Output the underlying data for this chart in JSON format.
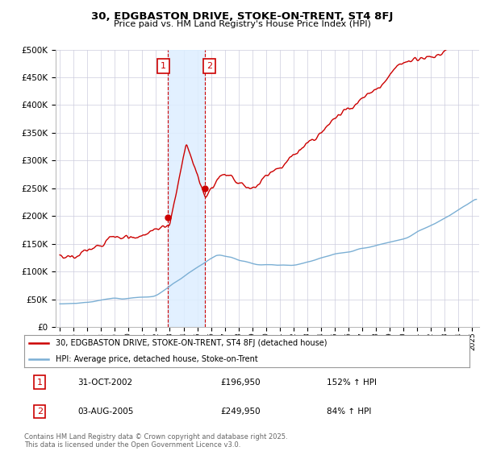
{
  "title": "30, EDGBASTON DRIVE, STOKE-ON-TRENT, ST4 8FJ",
  "subtitle": "Price paid vs. HM Land Registry's House Price Index (HPI)",
  "legend_line1": "30, EDGBASTON DRIVE, STOKE-ON-TRENT, ST4 8FJ (detached house)",
  "legend_line2": "HPI: Average price, detached house, Stoke-on-Trent",
  "annotation1_date": "31-OCT-2002",
  "annotation1_price": "£196,950",
  "annotation1_hpi": "152% ↑ HPI",
  "annotation2_date": "03-AUG-2005",
  "annotation2_price": "£249,950",
  "annotation2_hpi": "84% ↑ HPI",
  "footer": "Contains HM Land Registry data © Crown copyright and database right 2025.\nThis data is licensed under the Open Government Licence v3.0.",
  "purchase1_x": 2002.83,
  "purchase1_y": 196950,
  "purchase2_x": 2005.58,
  "purchase2_y": 249950,
  "vline1_x": 2002.83,
  "vline2_x": 2005.58,
  "shade_xmin": 2002.83,
  "shade_xmax": 2005.58,
  "line1_color": "#cc0000",
  "line2_color": "#7bafd4",
  "shade_color": "#ddeeff",
  "purchase_dot_color": "#cc0000",
  "vline_color": "#cc0000",
  "background_color": "#ffffff",
  "grid_color": "#ccccdd",
  "ylim": [
    0,
    500000
  ],
  "xlim": [
    1994.7,
    2025.5
  ],
  "yticks": [
    0,
    50000,
    100000,
    150000,
    200000,
    250000,
    300000,
    350000,
    400000,
    450000,
    500000
  ]
}
